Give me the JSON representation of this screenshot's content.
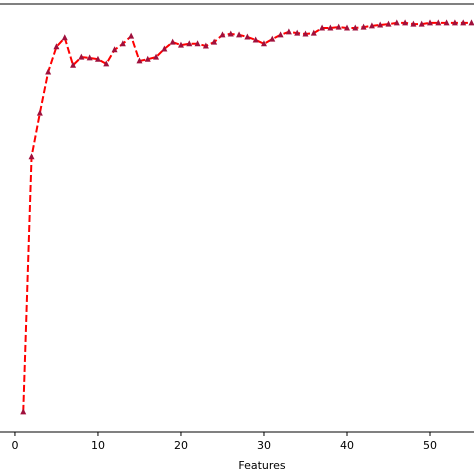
{
  "chart_data": {
    "type": "line",
    "x_label": "Features",
    "x": [
      1,
      2,
      3,
      4,
      5,
      6,
      7,
      8,
      9,
      10,
      11,
      12,
      13,
      14,
      15,
      16,
      17,
      18,
      19,
      20,
      21,
      22,
      23,
      24,
      25,
      26,
      27,
      28,
      29,
      30,
      31,
      32,
      33,
      34,
      35,
      36,
      37,
      38,
      39,
      40,
      41,
      42,
      43,
      44,
      45,
      46,
      47,
      48,
      49,
      50,
      51,
      52,
      53,
      54,
      55
    ],
    "series": [
      {
        "color": "#ff0000",
        "marker_color": "#a0103c",
        "values": [
          0.047,
          0.643,
          0.745,
          0.841,
          0.9,
          0.921,
          0.857,
          0.876,
          0.874,
          0.871,
          0.86,
          0.893,
          0.907,
          0.925,
          0.867,
          0.871,
          0.876,
          0.895,
          0.911,
          0.904,
          0.907,
          0.907,
          0.902,
          0.911,
          0.928,
          0.93,
          0.928,
          0.923,
          0.916,
          0.907,
          0.918,
          0.928,
          0.935,
          0.932,
          0.93,
          0.932,
          0.944,
          0.944,
          0.946,
          0.944,
          0.944,
          0.946,
          0.949,
          0.951,
          0.953,
          0.956,
          0.956,
          0.953,
          0.953,
          0.956,
          0.956,
          0.956,
          0.956,
          0.956,
          0.956
        ]
      }
    ],
    "xlim": [
      -1.8,
      55.3
    ],
    "ylim": [
      0,
      1
    ],
    "xticks": [
      0,
      10,
      20,
      30,
      40,
      50
    ]
  }
}
